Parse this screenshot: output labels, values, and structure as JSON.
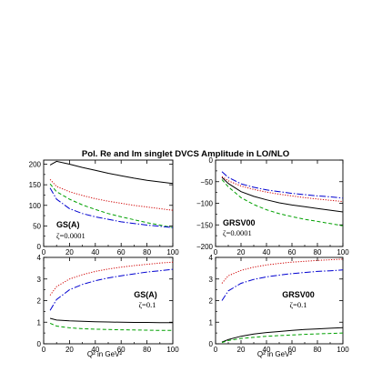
{
  "figure": {
    "title": "Pol. Re and Im singlet DVCS Amplitude in LO/NLO",
    "xlabel": "Q² in GeV²",
    "xlabel_left": "Q² in GeV²",
    "xlabel_right": "Q² in GeV²"
  },
  "style": {
    "curve_colors": [
      "#000000",
      "#d00000",
      "#00a000",
      "#0000d0"
    ],
    "curve_dashes": [
      "",
      "1.2,1.6",
      "4,2.5",
      "7,2,1.5,2"
    ]
  },
  "chart_data": [
    {
      "type": "line",
      "label": "GS(A)",
      "sublabel": "ζ=0.0001",
      "xlim": [
        0,
        100
      ],
      "ylim": [
        0,
        210
      ],
      "xticks": [
        0,
        20,
        40,
        60,
        80,
        100
      ],
      "yticks": [
        0,
        50,
        100,
        150,
        200
      ],
      "x": [
        5,
        10,
        20,
        30,
        40,
        50,
        60,
        70,
        80,
        90,
        100
      ],
      "series": [
        {
          "values": [
            198,
            207,
            200,
            192,
            185,
            178,
            172,
            166,
            161,
            157,
            153
          ]
        },
        {
          "values": [
            163,
            146,
            133,
            124,
            116,
            110,
            105,
            100,
            96,
            92,
            88
          ]
        },
        {
          "values": [
            152,
            133,
            115,
            101,
            90,
            80,
            72,
            65,
            58,
            52,
            46
          ]
        },
        {
          "values": [
            142,
            115,
            92,
            80,
            72,
            66,
            60,
            56,
            52,
            49,
            46
          ]
        }
      ]
    },
    {
      "type": "line",
      "label": "GRSV00",
      "sublabel": "ζ=0.0001",
      "xlim": [
        0,
        100
      ],
      "ylim": [
        -200,
        0
      ],
      "xticks": [
        0,
        20,
        40,
        60,
        80,
        100
      ],
      "yticks": [
        -200,
        -150,
        -100,
        -50,
        0
      ],
      "x": [
        5,
        10,
        20,
        30,
        40,
        50,
        60,
        70,
        80,
        90,
        100
      ],
      "series": [
        {
          "values": [
            -40,
            -54,
            -73,
            -84,
            -92,
            -99,
            -104,
            -108,
            -112,
            -116,
            -120
          ]
        },
        {
          "values": [
            -38,
            -48,
            -60,
            -68,
            -74,
            -79,
            -83,
            -87,
            -90,
            -93,
            -96
          ]
        },
        {
          "values": [
            -45,
            -62,
            -87,
            -103,
            -115,
            -124,
            -131,
            -137,
            -142,
            -147,
            -152
          ]
        },
        {
          "values": [
            -27,
            -40,
            -55,
            -63,
            -69,
            -73,
            -77,
            -80,
            -83,
            -85,
            -88
          ]
        }
      ]
    },
    {
      "type": "line",
      "label": "GS(A)",
      "sublabel": "ζ=0.1",
      "xlim": [
        0,
        100
      ],
      "ylim": [
        0,
        4
      ],
      "xticks": [
        0,
        20,
        40,
        60,
        80,
        100
      ],
      "yticks": [
        0,
        1,
        2,
        3,
        4
      ],
      "x": [
        5,
        10,
        20,
        30,
        40,
        50,
        60,
        70,
        80,
        90,
        100
      ],
      "series": [
        {
          "values": [
            1.18,
            1.1,
            1.06,
            1.04,
            1.02,
            1.01,
            1.0,
            0.99,
            0.99,
            0.98,
            0.98
          ]
        },
        {
          "values": [
            2.25,
            2.65,
            3.0,
            3.2,
            3.35,
            3.46,
            3.55,
            3.62,
            3.68,
            3.74,
            3.78
          ]
        },
        {
          "values": [
            0.95,
            0.82,
            0.74,
            0.7,
            0.68,
            0.66,
            0.65,
            0.64,
            0.63,
            0.62,
            0.62
          ]
        },
        {
          "values": [
            1.55,
            2.05,
            2.5,
            2.75,
            2.92,
            3.05,
            3.15,
            3.24,
            3.32,
            3.38,
            3.45
          ]
        }
      ]
    },
    {
      "type": "line",
      "label": "GRSV00",
      "sublabel": "ζ=0.1",
      "xlim": [
        0,
        100
      ],
      "ylim": [
        0,
        4
      ],
      "xticks": [
        0,
        20,
        40,
        60,
        80,
        100
      ],
      "yticks": [
        0,
        1,
        2,
        3,
        4
      ],
      "x": [
        5,
        10,
        20,
        30,
        40,
        50,
        60,
        70,
        80,
        90,
        100
      ],
      "series": [
        {
          "values": [
            0.08,
            0.2,
            0.35,
            0.45,
            0.52,
            0.57,
            0.62,
            0.66,
            0.69,
            0.72,
            0.75
          ]
        },
        {
          "values": [
            2.8,
            3.15,
            3.4,
            3.55,
            3.65,
            3.72,
            3.78,
            3.82,
            3.86,
            3.89,
            3.92
          ]
        },
        {
          "values": [
            0.06,
            0.15,
            0.25,
            0.3,
            0.35,
            0.38,
            0.41,
            0.44,
            0.46,
            0.48,
            0.5
          ]
        },
        {
          "values": [
            2.0,
            2.45,
            2.8,
            2.98,
            3.1,
            3.18,
            3.25,
            3.3,
            3.35,
            3.38,
            3.42
          ]
        }
      ]
    }
  ]
}
